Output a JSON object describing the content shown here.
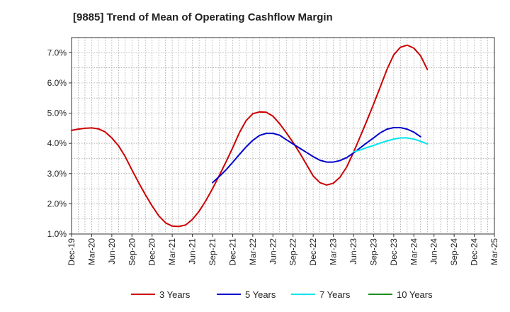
{
  "chart_data": {
    "type": "line",
    "title": "[9885]  Trend of Mean of Operating Cashflow Margin",
    "xlabel": "",
    "ylabel": "",
    "ylim": [
      1.0,
      7.5
    ],
    "yticks": [
      1.0,
      2.0,
      3.0,
      4.0,
      5.0,
      6.0,
      7.0
    ],
    "ytick_labels": [
      "1.0%",
      "2.0%",
      "3.0%",
      "4.0%",
      "5.0%",
      "6.0%",
      "7.0%"
    ],
    "x_categories": [
      "Dec-19",
      "Mar-20",
      "Jun-20",
      "Sep-20",
      "Dec-20",
      "Mar-21",
      "Jun-21",
      "Sep-21",
      "Dec-21",
      "Mar-22",
      "Jun-22",
      "Sep-22",
      "Dec-22",
      "Mar-23",
      "Jun-23",
      "Sep-23",
      "Dec-23",
      "Mar-24",
      "Jun-24",
      "Sep-24",
      "Dec-24",
      "Mar-25"
    ],
    "grid": true,
    "legend_position": "bottom",
    "series": [
      {
        "name": "3 Years",
        "color": "#cc0000",
        "points": [
          [
            0,
            4.43
          ],
          [
            1,
            4.47
          ],
          [
            2,
            4.5
          ],
          [
            3,
            4.51
          ],
          [
            4,
            4.48
          ],
          [
            5,
            4.38
          ],
          [
            6,
            4.18
          ],
          [
            7,
            3.92
          ],
          [
            8,
            3.56
          ],
          [
            9,
            3.12
          ],
          [
            10,
            2.7
          ],
          [
            11,
            2.3
          ],
          [
            12,
            1.93
          ],
          [
            13,
            1.6
          ],
          [
            14,
            1.37
          ],
          [
            15,
            1.26
          ],
          [
            16,
            1.25
          ],
          [
            17,
            1.3
          ],
          [
            18,
            1.48
          ],
          [
            19,
            1.75
          ],
          [
            20,
            2.1
          ],
          [
            21,
            2.5
          ],
          [
            22,
            2.93
          ],
          [
            23,
            3.38
          ],
          [
            24,
            3.85
          ],
          [
            25,
            4.35
          ],
          [
            26,
            4.75
          ],
          [
            27,
            4.98
          ],
          [
            28,
            5.04
          ],
          [
            29,
            5.03
          ],
          [
            30,
            4.9
          ],
          [
            31,
            4.65
          ],
          [
            32,
            4.35
          ],
          [
            33,
            4.03
          ],
          [
            34,
            3.68
          ],
          [
            35,
            3.3
          ],
          [
            36,
            2.92
          ],
          [
            37,
            2.7
          ],
          [
            38,
            2.62
          ],
          [
            39,
            2.68
          ],
          [
            40,
            2.88
          ],
          [
            41,
            3.22
          ],
          [
            42,
            3.7
          ],
          [
            43,
            4.22
          ],
          [
            44,
            4.75
          ],
          [
            45,
            5.3
          ],
          [
            46,
            5.87
          ],
          [
            47,
            6.45
          ],
          [
            48,
            6.93
          ],
          [
            49,
            7.18
          ],
          [
            50,
            7.25
          ],
          [
            51,
            7.15
          ],
          [
            52,
            6.9
          ],
          [
            53,
            6.45
          ]
        ]
      },
      {
        "name": "5 Years",
        "color": "#0000cc",
        "points": [
          [
            21,
            2.7
          ],
          [
            22,
            2.9
          ],
          [
            23,
            3.12
          ],
          [
            24,
            3.37
          ],
          [
            25,
            3.63
          ],
          [
            26,
            3.88
          ],
          [
            27,
            4.1
          ],
          [
            28,
            4.26
          ],
          [
            29,
            4.33
          ],
          [
            30,
            4.33
          ],
          [
            31,
            4.27
          ],
          [
            32,
            4.12
          ],
          [
            33,
            3.98
          ],
          [
            34,
            3.84
          ],
          [
            35,
            3.7
          ],
          [
            36,
            3.56
          ],
          [
            37,
            3.44
          ],
          [
            38,
            3.38
          ],
          [
            39,
            3.38
          ],
          [
            40,
            3.43
          ],
          [
            41,
            3.53
          ],
          [
            42,
            3.68
          ],
          [
            43,
            3.85
          ],
          [
            44,
            4.02
          ],
          [
            45,
            4.18
          ],
          [
            46,
            4.35
          ],
          [
            47,
            4.47
          ],
          [
            48,
            4.52
          ],
          [
            49,
            4.52
          ],
          [
            50,
            4.47
          ],
          [
            51,
            4.37
          ],
          [
            52,
            4.22
          ]
        ]
      },
      {
        "name": "7 Years",
        "color": "#00e5ee",
        "points": [
          [
            42,
            3.72
          ],
          [
            43,
            3.78
          ],
          [
            44,
            3.86
          ],
          [
            45,
            3.93
          ],
          [
            46,
            4.01
          ],
          [
            47,
            4.08
          ],
          [
            48,
            4.14
          ],
          [
            49,
            4.18
          ],
          [
            50,
            4.18
          ],
          [
            51,
            4.14
          ],
          [
            52,
            4.07
          ],
          [
            53,
            3.98
          ]
        ]
      },
      {
        "name": "10 Years",
        "color": "#228b22",
        "points": []
      }
    ]
  }
}
